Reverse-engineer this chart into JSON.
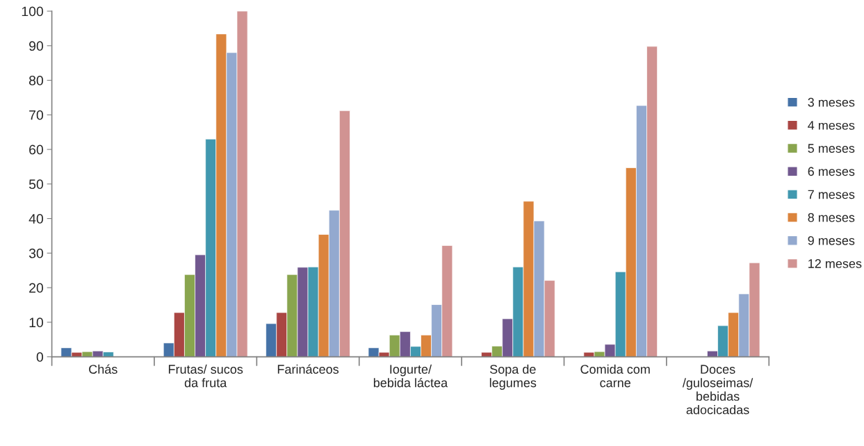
{
  "chart_data": {
    "type": "bar",
    "categories": [
      "Chás",
      "Frutas/ sucos\nda fruta",
      "Farináceos",
      "Iogurte/\nbebida láctea",
      "Sopa de\nlegumes",
      "Comida com\ncarne",
      "Doces\n/guloseimas/\nbebidas\nadocicadas"
    ],
    "series": [
      {
        "name": "3 meses",
        "color": "#4572a7",
        "values": [
          2.6,
          4.0,
          9.6,
          2.6,
          null,
          null,
          null
        ]
      },
      {
        "name": "4 meses",
        "color": "#aa4643",
        "values": [
          1.3,
          12.8,
          12.8,
          1.3,
          1.3,
          1.3,
          null
        ]
      },
      {
        "name": "5 meses",
        "color": "#89a54e",
        "values": [
          1.5,
          23.8,
          23.8,
          6.3,
          3.1,
          1.5,
          null
        ]
      },
      {
        "name": "6 meses",
        "color": "#71588f",
        "values": [
          1.7,
          29.5,
          25.9,
          7.3,
          11.0,
          3.6,
          1.7
        ]
      },
      {
        "name": "7 meses",
        "color": "#4198af",
        "values": [
          1.4,
          63.0,
          26.0,
          3.0,
          26.0,
          24.6,
          9.0
        ]
      },
      {
        "name": "8 meses",
        "color": "#db843d",
        "values": [
          null,
          93.4,
          35.4,
          6.3,
          45.0,
          54.7,
          12.8
        ]
      },
      {
        "name": "9 meses",
        "color": "#93a9cf",
        "values": [
          null,
          88.0,
          42.4,
          15.1,
          39.3,
          72.7,
          18.2
        ]
      },
      {
        "name": "12 meses",
        "color": "#d19392",
        "values": [
          null,
          100,
          71.2,
          32.2,
          22.1,
          89.8,
          27.2
        ]
      }
    ],
    "ylim": [
      0,
      100
    ],
    "yticks": [
      0,
      10,
      20,
      30,
      40,
      50,
      60,
      70,
      80,
      90,
      100
    ],
    "grid": false,
    "legend": "right"
  }
}
